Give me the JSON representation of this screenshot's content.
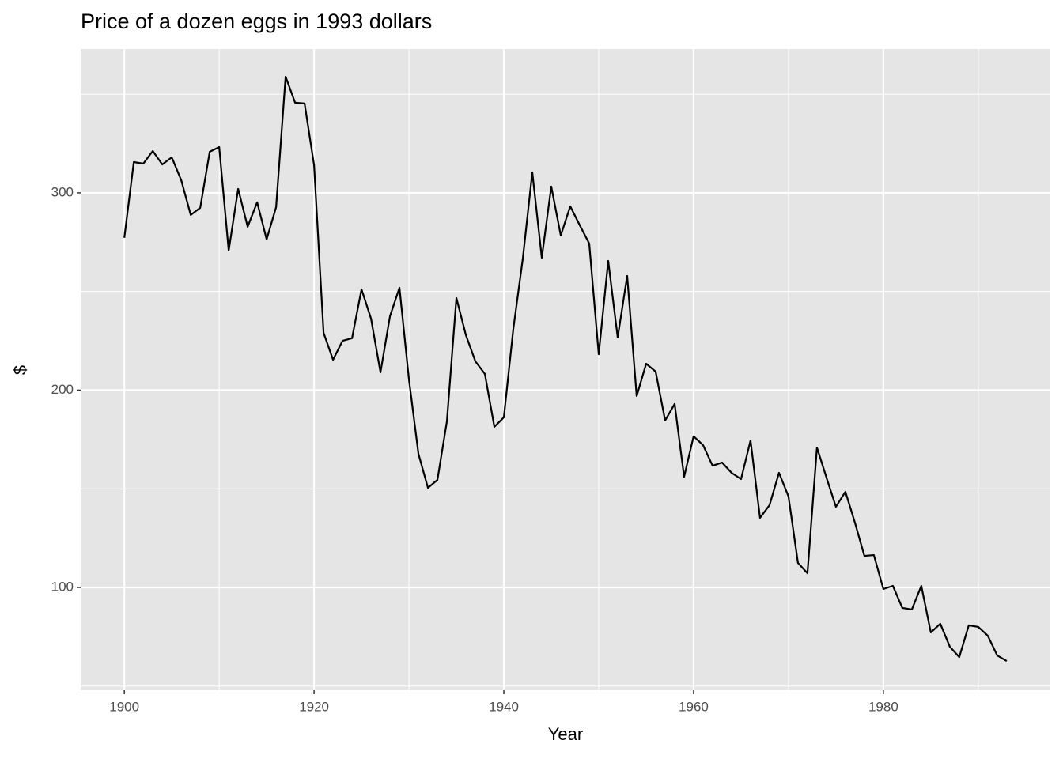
{
  "chart_data": {
    "type": "line",
    "title": "Price of a dozen eggs in 1993 dollars",
    "x_label": "Year",
    "y_label": "$",
    "x": [
      1900,
      1901,
      1902,
      1903,
      1904,
      1905,
      1906,
      1907,
      1908,
      1909,
      1910,
      1911,
      1912,
      1913,
      1914,
      1915,
      1916,
      1917,
      1918,
      1919,
      1920,
      1921,
      1922,
      1923,
      1924,
      1925,
      1926,
      1927,
      1928,
      1929,
      1930,
      1931,
      1932,
      1933,
      1934,
      1935,
      1936,
      1937,
      1938,
      1939,
      1940,
      1941,
      1942,
      1943,
      1944,
      1945,
      1946,
      1947,
      1948,
      1949,
      1950,
      1951,
      1952,
      1953,
      1954,
      1955,
      1956,
      1957,
      1958,
      1959,
      1960,
      1961,
      1962,
      1963,
      1964,
      1965,
      1966,
      1967,
      1968,
      1969,
      1970,
      1971,
      1972,
      1973,
      1974,
      1975,
      1976,
      1977,
      1978,
      1979,
      1980,
      1981,
      1982,
      1983,
      1984,
      1985,
      1986,
      1987,
      1988,
      1989,
      1990,
      1991,
      1992,
      1993
    ],
    "series": [
      {
        "color": "#000000",
        "values": [
          277.2,
          315.6,
          314.8,
          321.2,
          314.4,
          318,
          306.4,
          288.8,
          292.4,
          320.8,
          323.2,
          270.7,
          302,
          282.8,
          295.2,
          276.4,
          292.8,
          358.9,
          345.7,
          345.3,
          314,
          229.1,
          215.4,
          225,
          226.3,
          251.1,
          236.3,
          209,
          237.5,
          251.9,
          205.4,
          167.7,
          150.5,
          154.5,
          184.2,
          246.7,
          227.9,
          214.6,
          208.2,
          181.4,
          186.2,
          231.1,
          266.7,
          310.4,
          267.1,
          303.2,
          278.4,
          293.2,
          283.6,
          274.3,
          218.2,
          265.5,
          226.7,
          257.9,
          197,
          213.4,
          209.4,
          184.6,
          193,
          156.1,
          176.6,
          172.1,
          161.7,
          163.3,
          158.1,
          154.9,
          174.5,
          135.3,
          141.7,
          158.1,
          146.1,
          112.4,
          107.2,
          170.9,
          155.7,
          140.9,
          148.5,
          132.9,
          116,
          116.4,
          99.2,
          100.8,
          89.6,
          88.8,
          100.8,
          77.2,
          81.6,
          70,
          64.7,
          80.8,
          80,
          75.6,
          65.5,
          62.7
        ]
      }
    ],
    "xlim": [
      1895.4,
      1997.6
    ],
    "ylim": [
      47.9,
      372.9
    ],
    "xticks": [
      1900,
      1920,
      1940,
      1960,
      1980
    ],
    "yticks": [
      100,
      200,
      300
    ],
    "xminor": [
      1910,
      1930,
      1950,
      1970,
      1990
    ],
    "yminor": [
      50,
      150,
      250,
      350
    ],
    "grid": true,
    "panel_color": "#e5e5e5"
  }
}
